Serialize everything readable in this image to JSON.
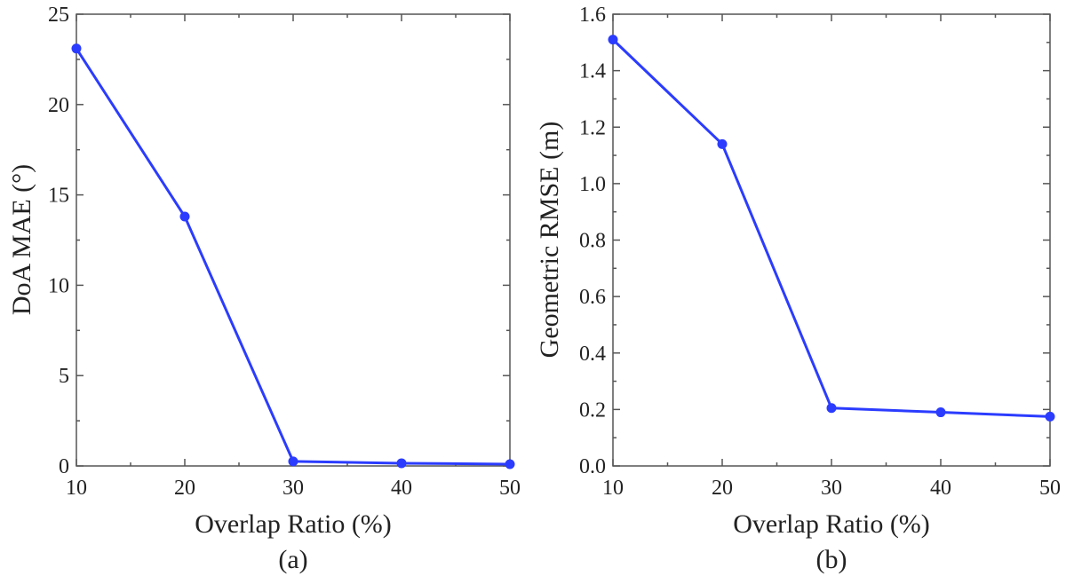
{
  "chart_data": [
    {
      "type": "line",
      "caption": "(a)",
      "xlabel": "Overlap Ratio (%)",
      "ylabel": "DoA MAE (°)",
      "x": [
        10,
        20,
        30,
        40,
        50
      ],
      "xlim": [
        10,
        50
      ],
      "ylim": [
        0,
        25
      ],
      "xticks": [
        "10",
        "20",
        "30",
        "40",
        "50"
      ],
      "yticks": [
        "0",
        "5",
        "10",
        "15",
        "20",
        "25"
      ],
      "series": [
        {
          "values": [
            23.1,
            13.8,
            0.25,
            0.15,
            0.1
          ],
          "color": "#2b3cff"
        }
      ],
      "grid": false
    },
    {
      "type": "line",
      "caption": "(b)",
      "xlabel": "Overlap Ratio (%)",
      "ylabel": "Geometric RMSE (m)",
      "x": [
        10,
        20,
        30,
        40,
        50
      ],
      "xlim": [
        10,
        50
      ],
      "ylim": [
        0,
        1.6
      ],
      "xticks": [
        "10",
        "20",
        "30",
        "40",
        "50"
      ],
      "yticks": [
        "0.0",
        "0.2",
        "0.4",
        "0.6",
        "0.8",
        "1.0",
        "1.2",
        "1.4",
        "1.6"
      ],
      "series": [
        {
          "values": [
            1.51,
            1.14,
            0.205,
            0.19,
            0.175
          ],
          "color": "#2b3cff"
        }
      ],
      "grid": false
    }
  ]
}
